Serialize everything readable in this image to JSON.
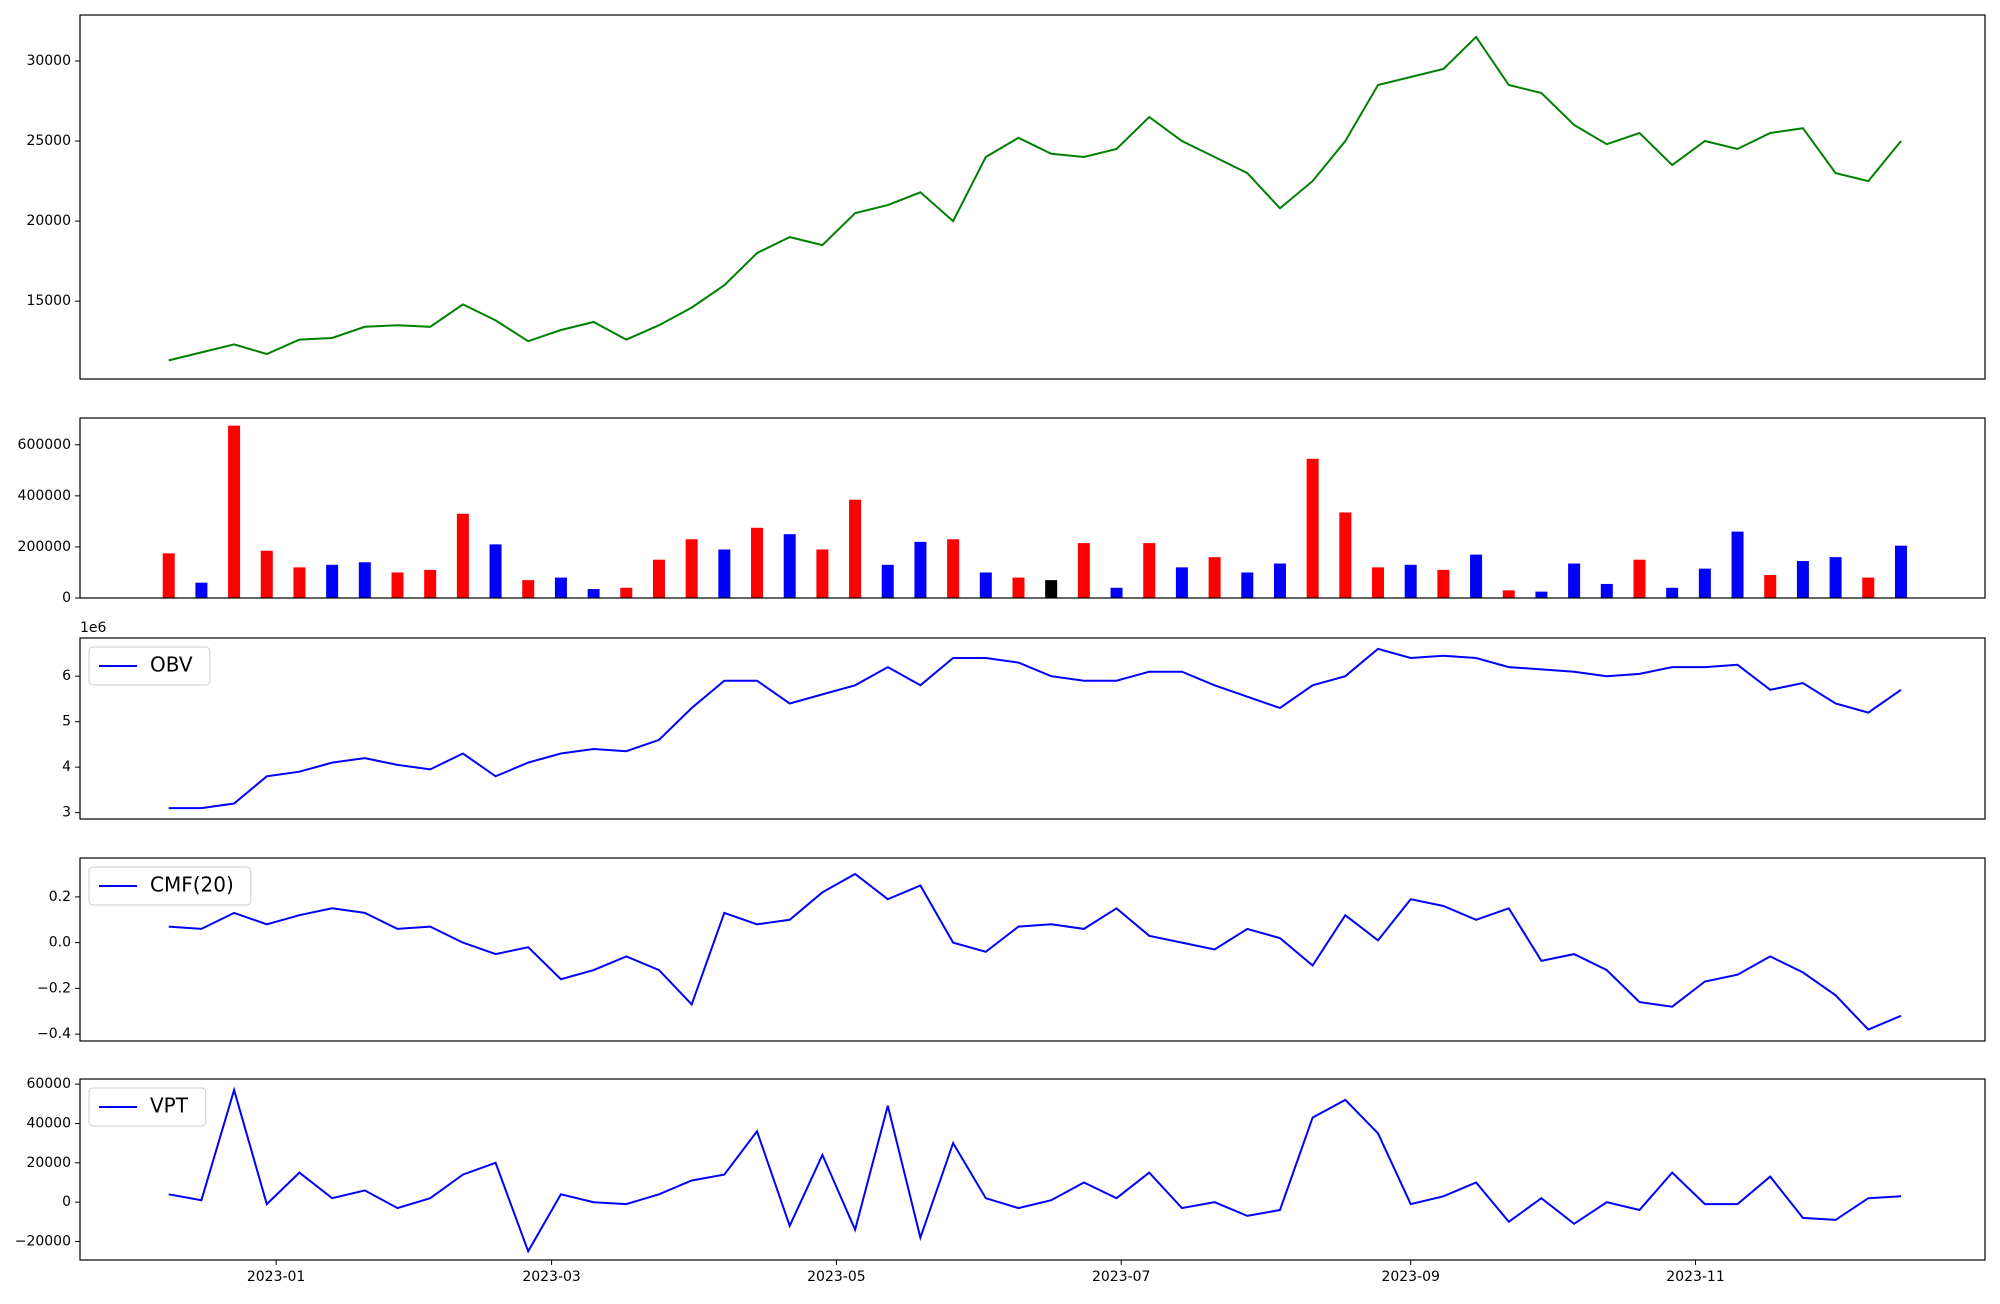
{
  "chart_data": [
    {
      "type": "line",
      "x": [
        "2022-12-09",
        "2022-12-16",
        "2022-12-23",
        "2022-12-30",
        "2023-01-06",
        "2023-01-13",
        "2023-01-20",
        "2023-01-27",
        "2023-02-03",
        "2023-02-10",
        "2023-02-17",
        "2023-02-24",
        "2023-03-03",
        "2023-03-10",
        "2023-03-17",
        "2023-03-24",
        "2023-03-31",
        "2023-04-07",
        "2023-04-14",
        "2023-04-21",
        "2023-04-28",
        "2023-05-05",
        "2023-05-12",
        "2023-05-19",
        "2023-05-26",
        "2023-06-02",
        "2023-06-09",
        "2023-06-16",
        "2023-06-23",
        "2023-06-30",
        "2023-07-07",
        "2023-07-14",
        "2023-07-21",
        "2023-07-28",
        "2023-08-04",
        "2023-08-11",
        "2023-08-18",
        "2023-08-25",
        "2023-09-01",
        "2023-09-08",
        "2023-09-15",
        "2023-09-22",
        "2023-09-29",
        "2023-10-06",
        "2023-10-13",
        "2023-10-20",
        "2023-10-27",
        "2023-11-03",
        "2023-11-10",
        "2023-11-17",
        "2023-11-24",
        "2023-12-01",
        "2023-12-08",
        "2023-12-15"
      ],
      "series": [
        {
          "color": "#008000",
          "values": [
            11300,
            11800,
            12300,
            11700,
            12600,
            12700,
            13400,
            13500,
            13400,
            14800,
            13800,
            12500,
            13200,
            13700,
            12600,
            13500,
            14600,
            16000,
            18000,
            19000,
            18500,
            20500,
            21000,
            21800,
            20000,
            24000,
            25200,
            24200,
            24000,
            24500,
            26500,
            25000,
            24000,
            23000,
            20800,
            22500,
            25000,
            28500,
            29000,
            29500,
            31500,
            28500,
            28000,
            26000,
            24800,
            25500,
            23500,
            25000,
            24500,
            25500,
            25800,
            23000,
            22500,
            25000
          ]
        }
      ],
      "xlim": [
        "2022-11-20",
        "2024-01-02"
      ],
      "ylim": [
        10140,
        32870
      ],
      "yticks": [
        15000,
        20000,
        25000,
        30000
      ]
    },
    {
      "type": "bar",
      "x": [
        "2022-12-09",
        "2022-12-16",
        "2022-12-23",
        "2022-12-30",
        "2023-01-06",
        "2023-01-13",
        "2023-01-20",
        "2023-01-27",
        "2023-02-03",
        "2023-02-10",
        "2023-02-17",
        "2023-02-24",
        "2023-03-03",
        "2023-03-10",
        "2023-03-17",
        "2023-03-24",
        "2023-03-31",
        "2023-04-07",
        "2023-04-14",
        "2023-04-21",
        "2023-04-28",
        "2023-05-05",
        "2023-05-12",
        "2023-05-19",
        "2023-05-26",
        "2023-06-02",
        "2023-06-09",
        "2023-06-16",
        "2023-06-23",
        "2023-06-30",
        "2023-07-07",
        "2023-07-14",
        "2023-07-21",
        "2023-07-28",
        "2023-08-04",
        "2023-08-11",
        "2023-08-18",
        "2023-08-25",
        "2023-09-01",
        "2023-09-08",
        "2023-09-15",
        "2023-09-22",
        "2023-09-29",
        "2023-10-06",
        "2023-10-13",
        "2023-10-20",
        "2023-10-27",
        "2023-11-03",
        "2023-11-10",
        "2023-11-17",
        "2023-11-24",
        "2023-12-01",
        "2023-12-08",
        "2023-12-15"
      ],
      "series": [
        {
          "values": [
            175000,
            60000,
            675000,
            185000,
            120000,
            130000,
            140000,
            100000,
            110000,
            330000,
            210000,
            70000,
            80000,
            35000,
            40000,
            150000,
            230000,
            190000,
            275000,
            250000,
            190000,
            385000,
            130000,
            220000,
            230000,
            100000,
            80000,
            70000,
            215000,
            40000,
            215000,
            120000,
            160000,
            100000,
            135000,
            545000,
            335000,
            120000,
            130000,
            110000,
            170000,
            30000,
            25000,
            135000,
            55000,
            150000,
            40000,
            115000,
            260000,
            90000,
            145000,
            160000,
            80000,
            205000
          ],
          "colors": [
            "red",
            "blue",
            "red",
            "red",
            "red",
            "blue",
            "blue",
            "red",
            "red",
            "red",
            "blue",
            "red",
            "blue",
            "blue",
            "red",
            "red",
            "red",
            "blue",
            "red",
            "blue",
            "red",
            "red",
            "blue",
            "blue",
            "red",
            "blue",
            "red",
            "black",
            "red",
            "blue",
            "red",
            "blue",
            "red",
            "blue",
            "blue",
            "red",
            "red",
            "red",
            "blue",
            "red",
            "blue",
            "red",
            "blue",
            "blue",
            "blue",
            "red",
            "blue",
            "blue",
            "blue",
            "red",
            "blue",
            "blue",
            "red",
            "blue"
          ]
        }
      ],
      "xlim": [
        "2022-11-20",
        "2024-01-02"
      ],
      "ylim": [
        0,
        705000
      ],
      "yticks": [
        0,
        200000,
        400000,
        600000
      ]
    },
    {
      "type": "line",
      "offset_label": "1e6",
      "legend": "upper left",
      "x": [
        "2022-12-09",
        "2022-12-16",
        "2022-12-23",
        "2022-12-30",
        "2023-01-06",
        "2023-01-13",
        "2023-01-20",
        "2023-01-27",
        "2023-02-03",
        "2023-02-10",
        "2023-02-17",
        "2023-02-24",
        "2023-03-03",
        "2023-03-10",
        "2023-03-17",
        "2023-03-24",
        "2023-03-31",
        "2023-04-07",
        "2023-04-14",
        "2023-04-21",
        "2023-04-28",
        "2023-05-05",
        "2023-05-12",
        "2023-05-19",
        "2023-05-26",
        "2023-06-02",
        "2023-06-09",
        "2023-06-16",
        "2023-06-23",
        "2023-06-30",
        "2023-07-07",
        "2023-07-14",
        "2023-07-21",
        "2023-07-28",
        "2023-08-04",
        "2023-08-11",
        "2023-08-18",
        "2023-08-25",
        "2023-09-01",
        "2023-09-08",
        "2023-09-15",
        "2023-09-22",
        "2023-09-29",
        "2023-10-06",
        "2023-10-13",
        "2023-10-20",
        "2023-10-27",
        "2023-11-03",
        "2023-11-10",
        "2023-11-17",
        "2023-11-24",
        "2023-12-01",
        "2023-12-08",
        "2023-12-15"
      ],
      "series": [
        {
          "name": "OBV",
          "color": "#0000ff",
          "values": [
            3.1,
            3.1,
            3.2,
            3.8,
            3.9,
            4.1,
            4.2,
            4.05,
            3.95,
            4.3,
            3.8,
            4.1,
            4.3,
            4.4,
            4.35,
            4.6,
            5.3,
            5.9,
            5.9,
            5.4,
            5.6,
            5.8,
            6.2,
            5.8,
            6.4,
            6.4,
            6.3,
            6.0,
            5.9,
            5.9,
            6.1,
            6.1,
            5.8,
            5.55,
            5.3,
            5.8,
            6.0,
            6.6,
            6.4,
            6.45,
            6.4,
            6.2,
            6.15,
            6.1,
            6.0,
            6.05,
            6.2,
            6.2,
            6.25,
            5.7,
            5.85,
            5.4,
            5.2,
            5.7
          ]
        }
      ],
      "xlim": [
        "2022-11-20",
        "2024-01-02"
      ],
      "ylim": [
        2.86,
        6.84
      ],
      "yticks": [
        3,
        4,
        5,
        6
      ]
    },
    {
      "type": "line",
      "legend": "upper left",
      "x": [
        "2022-12-09",
        "2022-12-16",
        "2022-12-23",
        "2022-12-30",
        "2023-01-06",
        "2023-01-13",
        "2023-01-20",
        "2023-01-27",
        "2023-02-03",
        "2023-02-10",
        "2023-02-17",
        "2023-02-24",
        "2023-03-03",
        "2023-03-10",
        "2023-03-17",
        "2023-03-24",
        "2023-03-31",
        "2023-04-07",
        "2023-04-14",
        "2023-04-21",
        "2023-04-28",
        "2023-05-05",
        "2023-05-12",
        "2023-05-19",
        "2023-05-26",
        "2023-06-02",
        "2023-06-09",
        "2023-06-16",
        "2023-06-23",
        "2023-06-30",
        "2023-07-07",
        "2023-07-14",
        "2023-07-21",
        "2023-07-28",
        "2023-08-04",
        "2023-08-11",
        "2023-08-18",
        "2023-08-25",
        "2023-09-01",
        "2023-09-08",
        "2023-09-15",
        "2023-09-22",
        "2023-09-29",
        "2023-10-06",
        "2023-10-13",
        "2023-10-20",
        "2023-10-27",
        "2023-11-03",
        "2023-11-10",
        "2023-11-17",
        "2023-11-24",
        "2023-12-01",
        "2023-12-08",
        "2023-12-15"
      ],
      "series": [
        {
          "name": "CMF(20)",
          "color": "#0000ff",
          "values": [
            0.07,
            0.06,
            0.13,
            0.08,
            0.12,
            0.15,
            0.13,
            0.06,
            0.07,
            0.0,
            -0.05,
            -0.02,
            -0.16,
            -0.12,
            -0.06,
            -0.12,
            -0.27,
            0.13,
            0.08,
            0.1,
            0.22,
            0.3,
            0.19,
            0.25,
            0.0,
            -0.04,
            0.07,
            0.08,
            0.06,
            0.15,
            0.03,
            0.0,
            -0.03,
            0.06,
            0.02,
            -0.1,
            0.12,
            0.01,
            0.19,
            0.16,
            0.1,
            0.15,
            -0.08,
            -0.05,
            -0.12,
            -0.26,
            -0.28,
            -0.17,
            -0.14,
            -0.06,
            -0.13,
            -0.23,
            -0.38,
            -0.32
          ]
        }
      ],
      "xlim": [
        "2022-11-20",
        "2024-01-02"
      ],
      "ylim": [
        -0.43,
        0.37
      ],
      "yticks": [
        {
          "value": -0.4,
          "label": "−0.4"
        },
        {
          "value": -0.2,
          "label": "−0.2"
        },
        {
          "value": 0,
          "label": "0.0"
        },
        0.2
      ]
    },
    {
      "type": "line",
      "legend": "upper left",
      "x": [
        "2022-12-09",
        "2022-12-16",
        "2022-12-23",
        "2022-12-30",
        "2023-01-06",
        "2023-01-13",
        "2023-01-20",
        "2023-01-27",
        "2023-02-03",
        "2023-02-10",
        "2023-02-17",
        "2023-02-24",
        "2023-03-03",
        "2023-03-10",
        "2023-03-17",
        "2023-03-24",
        "2023-03-31",
        "2023-04-07",
        "2023-04-14",
        "2023-04-21",
        "2023-04-28",
        "2023-05-05",
        "2023-05-12",
        "2023-05-19",
        "2023-05-26",
        "2023-06-02",
        "2023-06-09",
        "2023-06-16",
        "2023-06-23",
        "2023-06-30",
        "2023-07-07",
        "2023-07-14",
        "2023-07-21",
        "2023-07-28",
        "2023-08-04",
        "2023-08-11",
        "2023-08-18",
        "2023-08-25",
        "2023-09-01",
        "2023-09-08",
        "2023-09-15",
        "2023-09-22",
        "2023-09-29",
        "2023-10-06",
        "2023-10-13",
        "2023-10-20",
        "2023-10-27",
        "2023-11-03",
        "2023-11-10",
        "2023-11-17",
        "2023-11-24",
        "2023-12-01",
        "2023-12-08",
        "2023-12-15"
      ],
      "series": [
        {
          "name": "VPT",
          "color": "#0000ff",
          "values": [
            4000,
            1000,
            57000,
            -1000,
            15000,
            2000,
            6000,
            -3000,
            2000,
            14000,
            20000,
            -25000,
            4000,
            0,
            -1000,
            4000,
            11000,
            14000,
            36000,
            -12000,
            24000,
            -14000,
            49000,
            -18000,
            30000,
            2000,
            -3000,
            1000,
            10000,
            2000,
            15000,
            -3000,
            0,
            -7000,
            -4000,
            43000,
            52000,
            35000,
            -1000,
            3000,
            10000,
            -10000,
            2000,
            -11000,
            0,
            -4000,
            15000,
            -1000,
            -1000,
            13000,
            -8000,
            -9000,
            2000,
            3000
          ]
        }
      ],
      "xlim": [
        "2022-11-20",
        "2024-01-02"
      ],
      "ylim": [
        -29400,
        62600
      ],
      "yticks": [
        {
          "value": -20000,
          "label": "−20000"
        },
        0,
        20000,
        40000,
        60000
      ],
      "xticks": [
        {
          "value": "2023-01-01",
          "label": "2023-01"
        },
        {
          "value": "2023-03-01",
          "label": "2023-03"
        },
        {
          "value": "2023-05-01",
          "label": "2023-05"
        },
        {
          "value": "2023-07-01",
          "label": "2023-07"
        },
        {
          "value": "2023-09-01",
          "label": "2023-09"
        },
        {
          "value": "2023-11-01",
          "label": "2023-11"
        }
      ]
    }
  ]
}
